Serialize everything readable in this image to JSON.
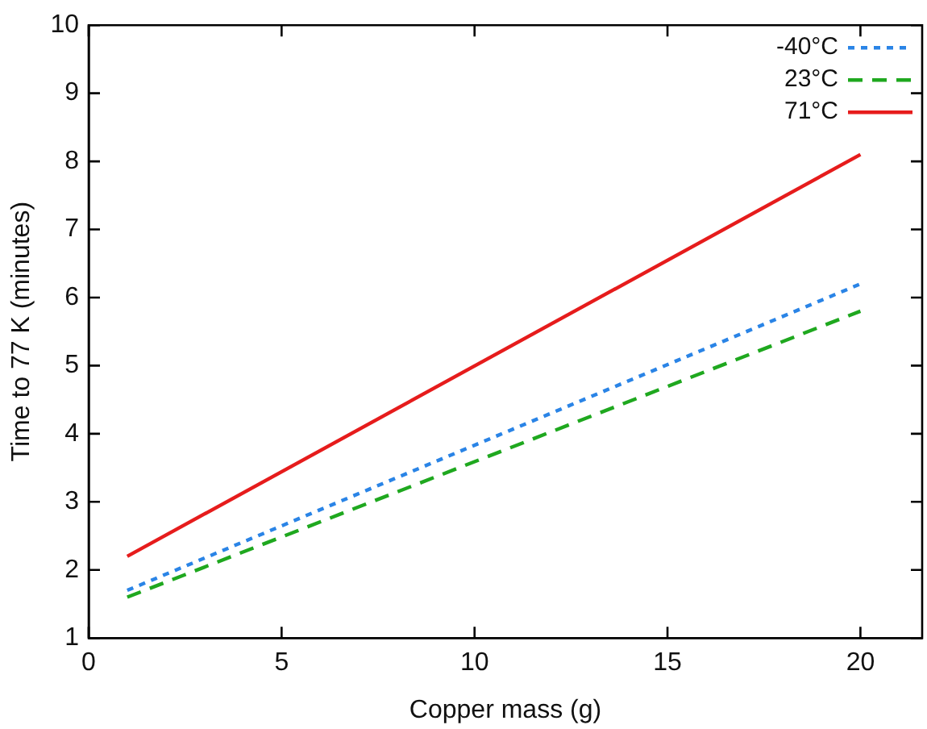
{
  "chart_data": {
    "type": "line",
    "xlabel": "Copper mass (g)",
    "ylabel": "Time to 77 K (minutes)",
    "xlim": [
      0,
      21.6
    ],
    "xticks": [
      0,
      5,
      10,
      15,
      20
    ],
    "ylim": [
      1,
      10
    ],
    "yticks": [
      1,
      2,
      3,
      4,
      5,
      6,
      7,
      8,
      9,
      10
    ],
    "grid": false,
    "legend": "top right",
    "marker": "none",
    "x": [
      1,
      20
    ],
    "series": [
      {
        "name": "-40°C",
        "color": "#2a84e6",
        "values": [
          1.7,
          6.2
        ],
        "line_style": "dotted"
      },
      {
        "name": "23°C",
        "color": "#1fa81f",
        "values": [
          1.6,
          5.8
        ],
        "line_style": "dashed"
      },
      {
        "name": "71°C",
        "color": "#e61c1c",
        "values": [
          2.2,
          8.1
        ],
        "line_style": "solid"
      }
    ]
  }
}
